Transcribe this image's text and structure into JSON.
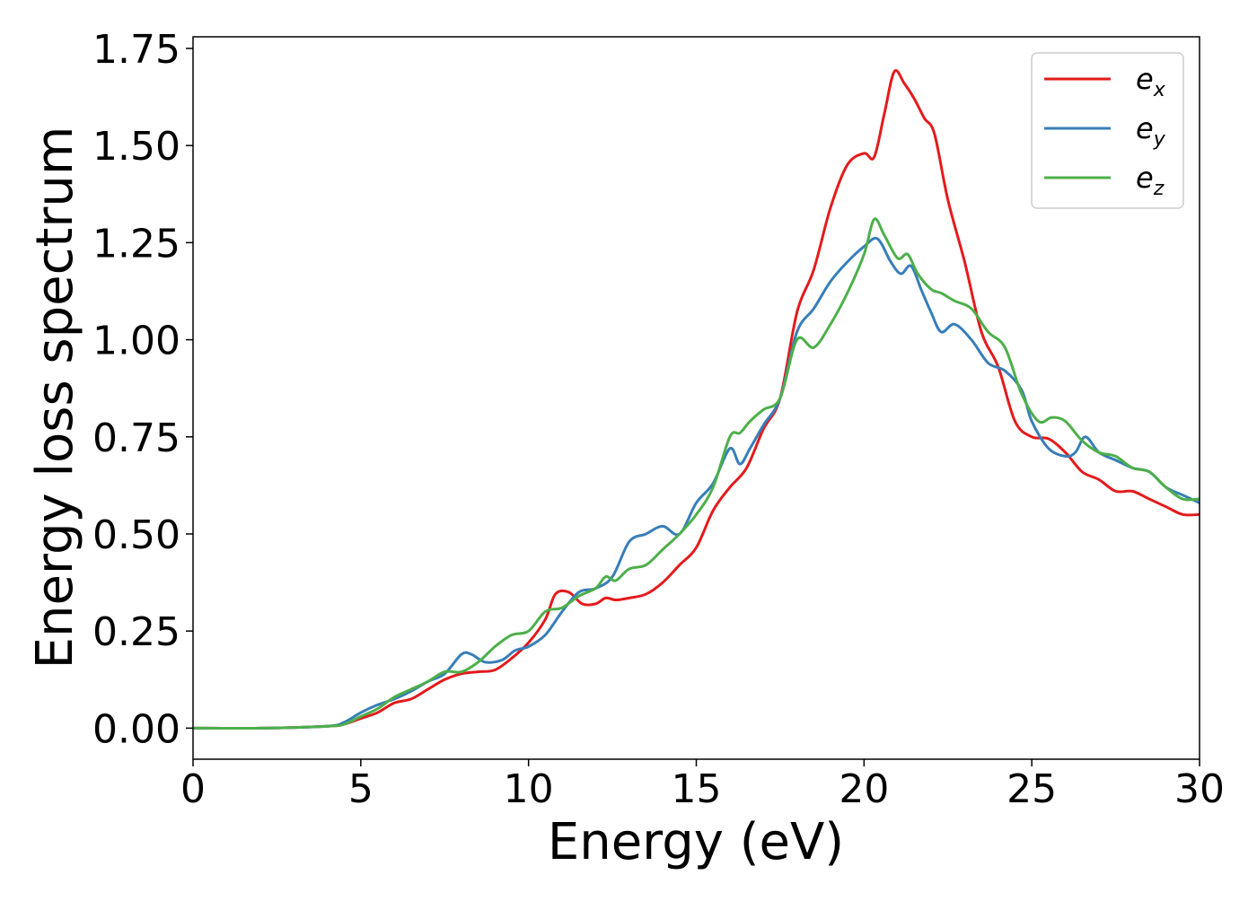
{
  "chart_data": {
    "type": "line",
    "title": "",
    "xlabel": "Energy (eV)",
    "ylabel": "Energy loss spectrum",
    "xlim": [
      0,
      30
    ],
    "ylim": [
      -0.08,
      1.78
    ],
    "xticks": [
      0,
      5,
      10,
      15,
      20,
      25,
      30
    ],
    "xtick_labels": [
      "0",
      "5",
      "10",
      "15",
      "20",
      "25",
      "30"
    ],
    "yticks": [
      0.0,
      0.25,
      0.5,
      0.75,
      1.0,
      1.25,
      1.5,
      1.75
    ],
    "ytick_labels": [
      "0.00",
      "0.25",
      "0.50",
      "0.75",
      "1.00",
      "1.25",
      "1.50",
      "1.75"
    ],
    "grid": false,
    "legend_position": "top-right",
    "series": [
      {
        "name": "e",
        "subscript": "x",
        "color": "#e41a1c",
        "x": [
          0,
          2,
          4,
          4.5,
          5,
          5.5,
          6,
          6.5,
          7,
          7.5,
          8,
          8.5,
          9,
          9.5,
          10,
          10.5,
          10.8,
          11.2,
          11.6,
          12,
          12.3,
          12.6,
          13,
          13.5,
          14,
          14.5,
          15,
          15.5,
          16,
          16.5,
          17,
          17.5,
          18,
          18.5,
          19,
          19.5,
          20,
          20.3,
          20.6,
          20.9,
          21.2,
          21.5,
          21.8,
          22.1,
          22.5,
          23,
          23.5,
          24,
          24.5,
          25,
          25.5,
          26,
          26.5,
          27,
          27.5,
          28,
          28.5,
          29,
          29.5,
          30
        ],
        "y": [
          0.0,
          0.0,
          0.005,
          0.01,
          0.025,
          0.04,
          0.065,
          0.075,
          0.1,
          0.125,
          0.14,
          0.145,
          0.15,
          0.18,
          0.22,
          0.28,
          0.345,
          0.35,
          0.32,
          0.32,
          0.335,
          0.33,
          0.335,
          0.345,
          0.375,
          0.42,
          0.465,
          0.56,
          0.62,
          0.67,
          0.77,
          0.85,
          1.07,
          1.18,
          1.34,
          1.45,
          1.48,
          1.47,
          1.58,
          1.69,
          1.66,
          1.62,
          1.57,
          1.53,
          1.36,
          1.2,
          1.02,
          0.93,
          0.79,
          0.75,
          0.745,
          0.71,
          0.66,
          0.64,
          0.61,
          0.61,
          0.59,
          0.57,
          0.55,
          0.55
        ]
      },
      {
        "name": "e",
        "subscript": "y",
        "color": "#377eb8",
        "x": [
          0,
          2,
          4,
          4.5,
          5,
          5.5,
          6,
          6.5,
          7,
          7.5,
          8,
          8.3,
          8.7,
          9.2,
          9.6,
          10,
          10.5,
          11,
          11.5,
          12,
          12.5,
          13,
          13.5,
          14,
          14.5,
          15,
          15.5,
          16,
          16.3,
          16.6,
          17,
          17.5,
          18,
          18.5,
          19,
          19.5,
          20,
          20.4,
          20.8,
          21.1,
          21.4,
          21.7,
          22,
          22.3,
          22.7,
          23.2,
          23.7,
          24.2,
          24.7,
          25,
          25.5,
          26,
          26.3,
          26.6,
          27,
          27.5,
          28,
          28.5,
          29,
          29.5,
          30
        ],
        "y": [
          0.0,
          0.0,
          0.005,
          0.015,
          0.04,
          0.06,
          0.075,
          0.095,
          0.12,
          0.14,
          0.19,
          0.19,
          0.17,
          0.175,
          0.2,
          0.21,
          0.24,
          0.3,
          0.35,
          0.36,
          0.39,
          0.48,
          0.5,
          0.52,
          0.5,
          0.58,
          0.63,
          0.72,
          0.68,
          0.72,
          0.78,
          0.85,
          1.02,
          1.08,
          1.15,
          1.2,
          1.24,
          1.26,
          1.2,
          1.17,
          1.19,
          1.13,
          1.07,
          1.02,
          1.04,
          1.0,
          0.94,
          0.92,
          0.87,
          0.79,
          0.72,
          0.7,
          0.71,
          0.75,
          0.71,
          0.69,
          0.67,
          0.66,
          0.62,
          0.6,
          0.58
        ]
      },
      {
        "name": "e",
        "subscript": "z",
        "color": "#4daf4a",
        "x": [
          0,
          2,
          4,
          4.5,
          5,
          5.5,
          6,
          6.5,
          7,
          7.5,
          8,
          8.5,
          9,
          9.5,
          10,
          10.5,
          11,
          11.5,
          12,
          12.3,
          12.6,
          13,
          13.5,
          14,
          14.5,
          15,
          15.5,
          16,
          16.3,
          16.6,
          17,
          17.5,
          18,
          18.5,
          19,
          19.5,
          20,
          20.3,
          20.6,
          21,
          21.3,
          21.6,
          22,
          22.3,
          22.7,
          23.2,
          23.7,
          24.2,
          24.7,
          25.2,
          25.6,
          26,
          26.5,
          27,
          27.5,
          28,
          28.5,
          29,
          29.5,
          30
        ],
        "y": [
          0.0,
          0.0,
          0.005,
          0.01,
          0.03,
          0.05,
          0.08,
          0.1,
          0.12,
          0.145,
          0.145,
          0.17,
          0.21,
          0.24,
          0.25,
          0.3,
          0.31,
          0.34,
          0.36,
          0.39,
          0.38,
          0.41,
          0.42,
          0.46,
          0.5,
          0.55,
          0.62,
          0.75,
          0.76,
          0.79,
          0.82,
          0.85,
          1.0,
          0.98,
          1.04,
          1.12,
          1.22,
          1.31,
          1.27,
          1.21,
          1.22,
          1.17,
          1.13,
          1.12,
          1.1,
          1.08,
          1.02,
          0.98,
          0.86,
          0.79,
          0.8,
          0.79,
          0.74,
          0.71,
          0.7,
          0.67,
          0.66,
          0.62,
          0.59,
          0.59
        ]
      }
    ]
  }
}
